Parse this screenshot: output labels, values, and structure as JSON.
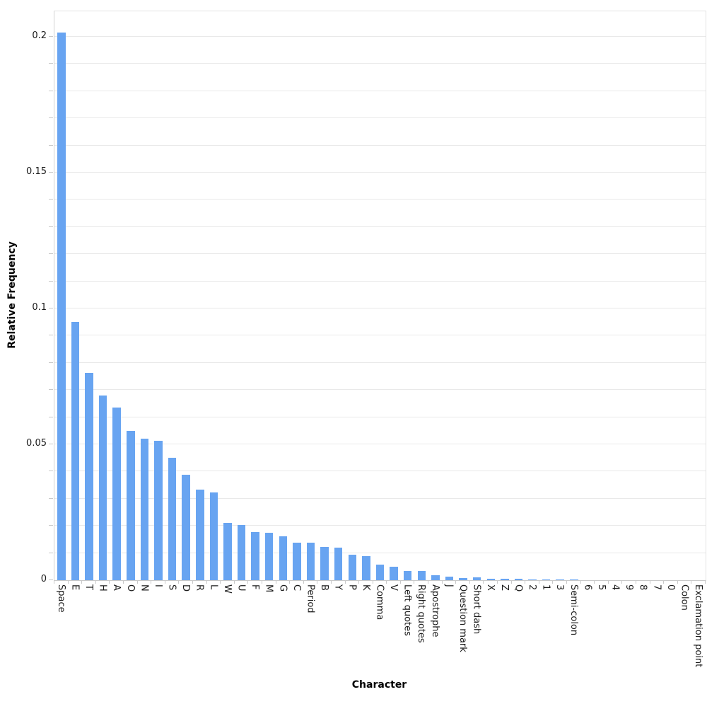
{
  "chart_data": {
    "type": "bar",
    "title": "",
    "xlabel": "Character",
    "ylabel": "Relative Frequency",
    "ylim": [
      0,
      0.209375
    ],
    "grid": true,
    "grid_dtick": 0.01,
    "legend_position": "none",
    "yticks": [
      {
        "value": 0,
        "label": "0"
      },
      {
        "value": 0.05,
        "label": "0.05"
      },
      {
        "value": 0.1,
        "label": "0.1"
      },
      {
        "value": 0.15,
        "label": "0.15"
      },
      {
        "value": 0.2,
        "label": "0.2"
      }
    ],
    "categories": [
      "Space",
      "E",
      "T",
      "H",
      "A",
      "O",
      "N",
      "I",
      "S",
      "D",
      "R",
      "L",
      "W",
      "U",
      "F",
      "M",
      "G",
      "C",
      "Period",
      "B",
      "Y",
      "P",
      "K",
      "Comma",
      "V",
      "Left quotes",
      "Right quotes",
      "Apostrophe",
      "J",
      "Question mark",
      "Short dash",
      "X",
      "Z",
      "Q",
      "2",
      "1",
      "3",
      "Semi-colon",
      "6",
      "5",
      "4",
      "9",
      "8",
      "7",
      "0",
      "Colon",
      "Exclamation point"
    ],
    "values": [
      0.2016,
      0.095,
      0.0763,
      0.068,
      0.0635,
      0.0549,
      0.052,
      0.0513,
      0.045,
      0.0388,
      0.0333,
      0.0322,
      0.0212,
      0.0203,
      0.0177,
      0.0174,
      0.0162,
      0.0139,
      0.0138,
      0.0123,
      0.012,
      0.0095,
      0.0089,
      0.0058,
      0.0049,
      0.0033,
      0.0035,
      0.0017,
      0.0013,
      0.0009,
      0.001,
      0.0006,
      0.0004,
      0.0004,
      0.0003,
      0.00025,
      0.0002,
      0.00015,
      0.00012,
      0.0001,
      0.0001,
      8e-05,
      7e-05,
      6e-05,
      5e-05,
      4e-05,
      3e-05
    ],
    "colors": {
      "bar": "#68a4f1",
      "gridline": "#e9e9e9",
      "tick": "#c9c9c9",
      "text": "#1a1a1a"
    }
  }
}
